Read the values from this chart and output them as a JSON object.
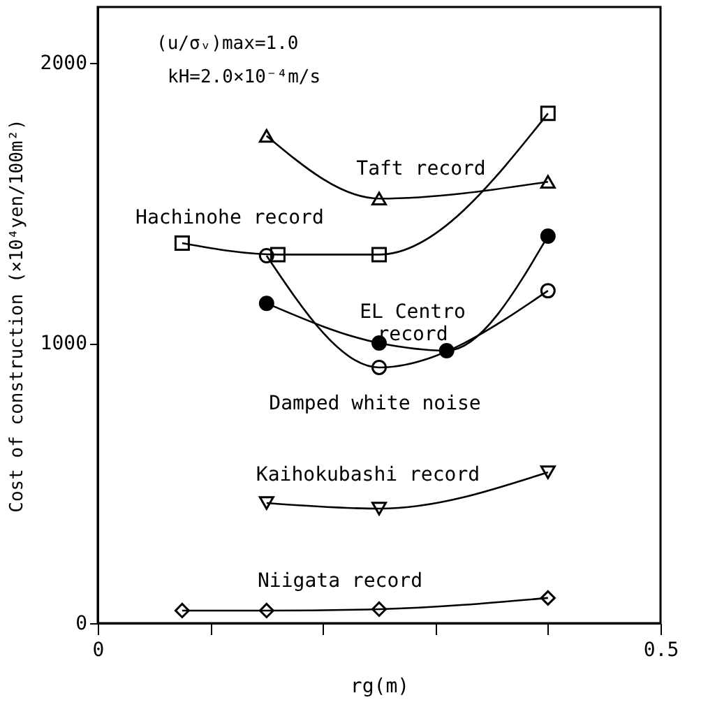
{
  "chart_data": {
    "type": "line",
    "xlabel": "rg(m)",
    "ylabel": "Cost of construction (×10⁴yen/100m²)",
    "xlim": [
      0,
      0.5
    ],
    "xticks": [
      0,
      {
        "value": 0.1,
        "label": null
      },
      {
        "value": 0.2,
        "label": null
      },
      {
        "value": 0.3,
        "label": null
      },
      {
        "value": 0.4,
        "label": null
      },
      0.5
    ],
    "ylim": [
      0,
      2200
    ],
    "yticks": [
      0,
      1000,
      2000
    ],
    "grid": false,
    "annotations": [
      "(u/σᵥ)max=1.0",
      "kH=2.0×10⁻⁴m/s"
    ],
    "series": [
      {
        "name": "Taft record",
        "color": "#000000",
        "marker": "triangle",
        "x": [
          0.15,
          0.25,
          0.4
        ],
        "values": [
          1740,
          1516,
          1576
        ]
      },
      {
        "name": "Hachinohe record",
        "color": "#000000",
        "marker": "square",
        "x": [
          0.075,
          0.16,
          0.25,
          0.4
        ],
        "values": [
          1357,
          1316,
          1316,
          1820
        ]
      },
      {
        "name": "EL Centro\nrecord",
        "color": "#000000",
        "marker": "circle",
        "x": [
          0.15,
          0.25,
          0.31,
          0.4
        ],
        "values": [
          1142,
          1000,
          973,
          1382
        ]
      },
      {
        "name": "Damped white noise",
        "color": "#000000",
        "marker": "circle",
        "x": [
          0.15,
          0.25,
          0.4
        ],
        "values": [
          1312,
          913,
          1187
        ]
      },
      {
        "name": "Kaihokubashi record",
        "color": "#000000",
        "marker": "triangle",
        "x": [
          0.15,
          0.25,
          0.4
        ],
        "values": [
          429,
          409,
          539
        ]
      },
      {
        "name": "Niigata record",
        "color": "#000000",
        "marker": "diamond",
        "x": [
          0.075,
          0.15,
          0.25,
          0.4
        ],
        "values": [
          45,
          45,
          50,
          90
        ]
      }
    ]
  }
}
